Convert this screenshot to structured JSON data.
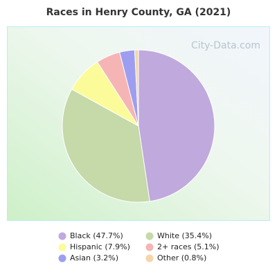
{
  "chart_data": {
    "type": "pie",
    "title": "Races in Henry County, GA (2021)",
    "watermark": "City-Data.com",
    "categories": [
      "Black (47.7%)",
      "White (35.4%)",
      "Hispanic (7.9%)",
      "2+ races (5.1%)",
      "Asian (3.2%)",
      "Other (0.8%)"
    ],
    "values": [
      47.7,
      35.4,
      7.9,
      5.1,
      3.2,
      0.8
    ],
    "colors": [
      "#c0a9dd",
      "#c5d9a9",
      "#fbfb9a",
      "#f5b5b5",
      "#9e9ef0",
      "#f5d5aa"
    ]
  }
}
